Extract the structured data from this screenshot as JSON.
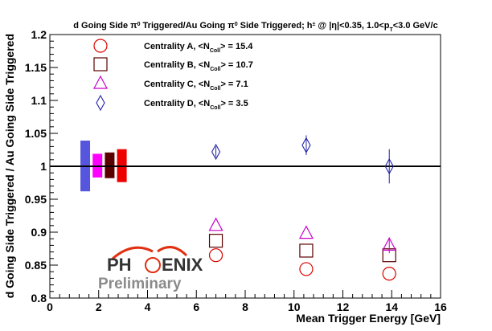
{
  "chart_data": {
    "type": "scatter",
    "title_html": "d Going Side &pi;<tspan baseline-shift='super' font-size='7'>0</tspan> Triggered/Au Going &pi;<tspan baseline-shift='super' font-size='7'>0</tspan> Side Triggered; h<tspan baseline-shift='super' font-size='7'>&plusmn;</tspan> @ |&eta;|&lt;0.35, 1.0&lt;p<tspan baseline-shift='sub' font-size='7'>T</tspan>&lt;3.0 GeV/c",
    "title_plain": "d Going Side π0 Triggered/Au Going π0 Side Triggered; h± @ |η|<0.35, 1.0<pT<3.0 GeV/c",
    "xlabel": "Mean Trigger Energy [GeV]",
    "ylabel": "d Going Side Triggered / Au Going Side Triggered",
    "xlim": [
      0,
      16
    ],
    "ylim": [
      0.8,
      1.2
    ],
    "x_ticks": [
      0,
      2,
      4,
      6,
      8,
      10,
      12,
      14,
      16
    ],
    "x_tick_labels": [
      "0",
      "2",
      "4",
      "6",
      "8",
      "10",
      "12",
      "14",
      "16"
    ],
    "y_ticks": [
      0.8,
      0.85,
      0.9,
      0.95,
      1.0,
      1.05,
      1.1,
      1.15,
      1.2
    ],
    "y_tick_labels": [
      "0.8",
      "0.85",
      "0.9",
      "0.95",
      "1",
      "1.05",
      "1.1",
      "1.15",
      "1.2"
    ],
    "reference_line": 1.0,
    "series": [
      {
        "name": "Centrality A",
        "legend_label": "Centrality A, <NColl> = 15.4",
        "legend_prefix": "Centrality A, <N",
        "legend_sub": "Coll",
        "legend_suffix": "> = 15.4",
        "marker": "circle",
        "color": "#dd0000",
        "points": [
          {
            "x": 6.8,
            "y": 0.865,
            "err": 0.0
          },
          {
            "x": 10.5,
            "y": 0.844,
            "err": 0.0
          },
          {
            "x": 13.9,
            "y": 0.837,
            "err": 0.0
          }
        ]
      },
      {
        "name": "Centrality B",
        "legend_label": "Centrality B, <NColl> = 10.7",
        "legend_prefix": "Centrality B, <N",
        "legend_sub": "Coll",
        "legend_suffix": "> = 10.7",
        "marker": "square",
        "color": "#5a0000",
        "points": [
          {
            "x": 6.8,
            "y": 0.887,
            "err": 0.0
          },
          {
            "x": 10.5,
            "y": 0.872,
            "err": 0.0
          },
          {
            "x": 13.9,
            "y": 0.865,
            "err": 0.0
          }
        ]
      },
      {
        "name": "Centrality C",
        "legend_label": "Centrality C, <NColl> = 7.1",
        "legend_prefix": "Centrality C, <N",
        "legend_sub": "Coll",
        "legend_suffix": "> = 7.1",
        "marker": "triangle",
        "color": "#cc00cc",
        "points": [
          {
            "x": 6.8,
            "y": 0.91,
            "err": 0.0
          },
          {
            "x": 10.5,
            "y": 0.898,
            "err": 0.0
          },
          {
            "x": 13.9,
            "y": 0.88,
            "err": 0.012
          }
        ]
      },
      {
        "name": "Centrality D",
        "legend_label": "Centrality D, <NColl> = 3.5",
        "legend_prefix": "Centrality D, <N",
        "legend_sub": "Coll",
        "legend_suffix": "> = 3.5",
        "marker": "diamond",
        "color": "#2222aa",
        "points": [
          {
            "x": 6.8,
            "y": 1.022,
            "err": 0.008
          },
          {
            "x": 10.5,
            "y": 1.032,
            "err": 0.015
          },
          {
            "x": 13.9,
            "y": 1.0,
            "err": 0.026
          }
        ]
      }
    ],
    "systematic_bands": [
      {
        "series": "Centrality D",
        "x": 1.45,
        "y_low": 0.962,
        "y_high": 1.039,
        "color": "#5555dd"
      },
      {
        "series": "Centrality C",
        "x": 1.95,
        "y_low": 0.983,
        "y_high": 1.019,
        "color": "#ff00ff"
      },
      {
        "series": "Centrality B",
        "x": 2.45,
        "y_low": 0.982,
        "y_high": 1.021,
        "color": "#5a0000"
      },
      {
        "series": "Centrality A",
        "x": 2.95,
        "y_low": 0.976,
        "y_high": 1.026,
        "color": "#ee0000"
      }
    ],
    "logo": {
      "main": "PHENIX",
      "main_left": "PH",
      "main_right": "ENIX",
      "sub": "Preliminary"
    }
  }
}
